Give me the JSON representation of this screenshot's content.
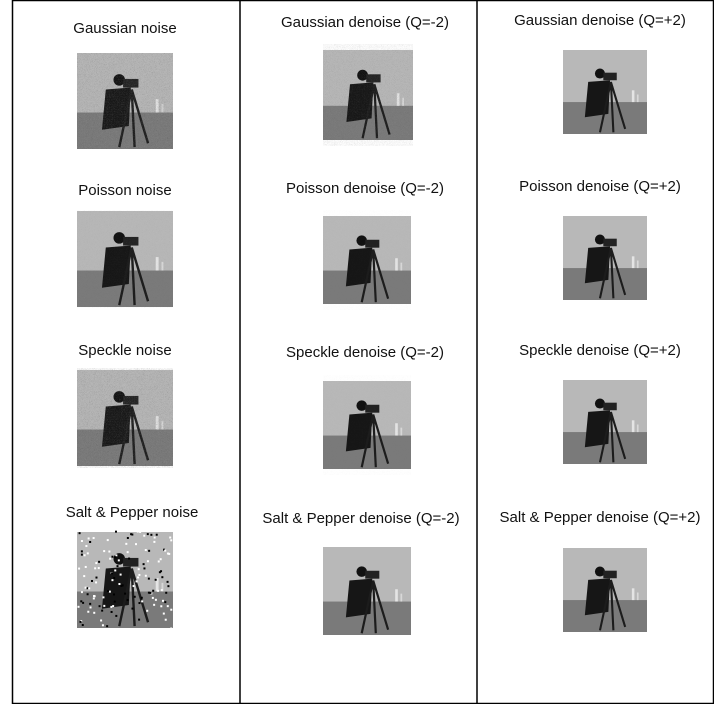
{
  "table": {
    "rows": [
      [
        "Gaussian noise",
        "Gaussian denoise (Q=-2)",
        "Gaussian denoise (Q=+2)"
      ],
      [
        "Poisson noise",
        "Poisson denoise (Q=-2)",
        "Poisson denoise (Q=+2)"
      ],
      [
        "Speckle noise",
        "Speckle denoise (Q=-2)",
        "Speckle denoise (Q=+2)"
      ],
      [
        "Salt & Pepper noise",
        "Salt & Pepper denoise (Q=-2)",
        "Salt & Pepper denoise (Q=+2)"
      ]
    ]
  }
}
